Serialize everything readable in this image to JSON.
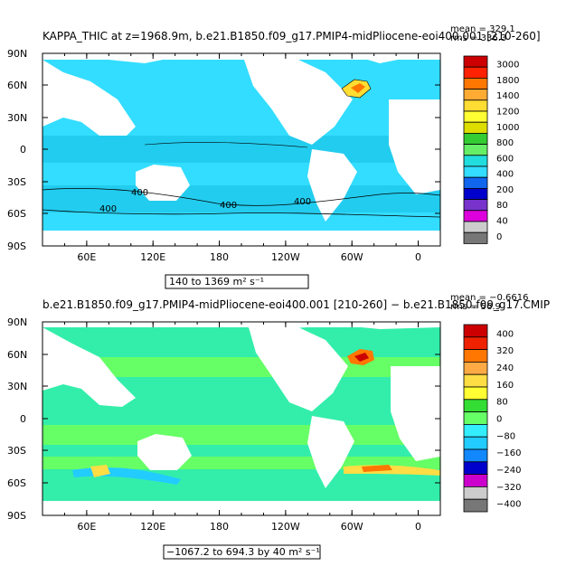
{
  "chart_data": [
    {
      "type": "heatmap",
      "title_left": "KAPPA_THIC at z=1968.9m, b.e21.B1850.f09_g17.PMIP4-midPliocene-eoi400.001 [210-260]",
      "stat_mean": "mean = 329.1",
      "stat_rms": "rms = 336.3",
      "ylim": [
        -90,
        90
      ],
      "y_ticks": [
        "90N",
        "60N",
        "30N",
        "0",
        "30S",
        "60S",
        "90S"
      ],
      "x_ticks": [
        "60E",
        "120E",
        "180",
        "120W",
        "60W",
        "0"
      ],
      "x_tick_lon": [
        60,
        120,
        180,
        240,
        300,
        360
      ],
      "xlim_lon": [
        20,
        380
      ],
      "contour_labels": [
        "400",
        "400",
        "400",
        "400"
      ],
      "range_label": "140 to 1369 m² s⁻¹",
      "colorbar": {
        "levels": [
          "3000",
          "1800",
          "1400",
          "1200",
          "1000",
          "800",
          "600",
          "400",
          "200",
          "80",
          "40",
          "0"
        ],
        "colors": [
          "#cc0000",
          "#ff2200",
          "#ff7700",
          "#ffaa33",
          "#ffdd33",
          "#ffff33",
          "#dddd00",
          "#33cc33",
          "#66ee66",
          "#22dddd",
          "#33ddff",
          "#1166ee",
          "#0000cc",
          "#7733cc",
          "#dd00dd",
          "#cccccc",
          "#777777"
        ]
      }
    },
    {
      "type": "heatmap",
      "title_left": "b.e21.B1850.f09_g17.PMIP4-midPliocene-eoi400.001 [210-260] − b.e21.B1850.f09_g17.CMIP",
      "stat_mean": "mean = −0.6616",
      "stat_rms": "rms = 56.9",
      "ylim": [
        -90,
        90
      ],
      "y_ticks": [
        "90N",
        "60N",
        "30N",
        "0",
        "30S",
        "60S",
        "90S"
      ],
      "x_ticks": [
        "60E",
        "120E",
        "180",
        "120W",
        "60W",
        "0"
      ],
      "x_tick_lon": [
        60,
        120,
        180,
        240,
        300,
        360
      ],
      "xlim_lon": [
        20,
        380
      ],
      "range_label": "−1067.2 to 694.3 by 40 m² s⁻¹",
      "colorbar": {
        "levels": [
          "400",
          "320",
          "240",
          "160",
          "80",
          "0",
          "−80",
          "−160",
          "−240",
          "−320",
          "−400"
        ],
        "colors": [
          "#cc0000",
          "#ee2200",
          "#ff7700",
          "#ffaa44",
          "#ffdd44",
          "#ffff33",
          "#33dd33",
          "#66ff66",
          "#33eeff",
          "#22ccff",
          "#1188ff",
          "#0000cc",
          "#cc00cc",
          "#cccccc",
          "#777777"
        ]
      }
    }
  ],
  "colors": {
    "ocean_base_top": "#33ddff",
    "ocean_band_top": "#22ccee",
    "ocean_base_bottom": "#33eeaa",
    "ocean_band_bottom": "#66ff66",
    "land": "#ffffff"
  }
}
